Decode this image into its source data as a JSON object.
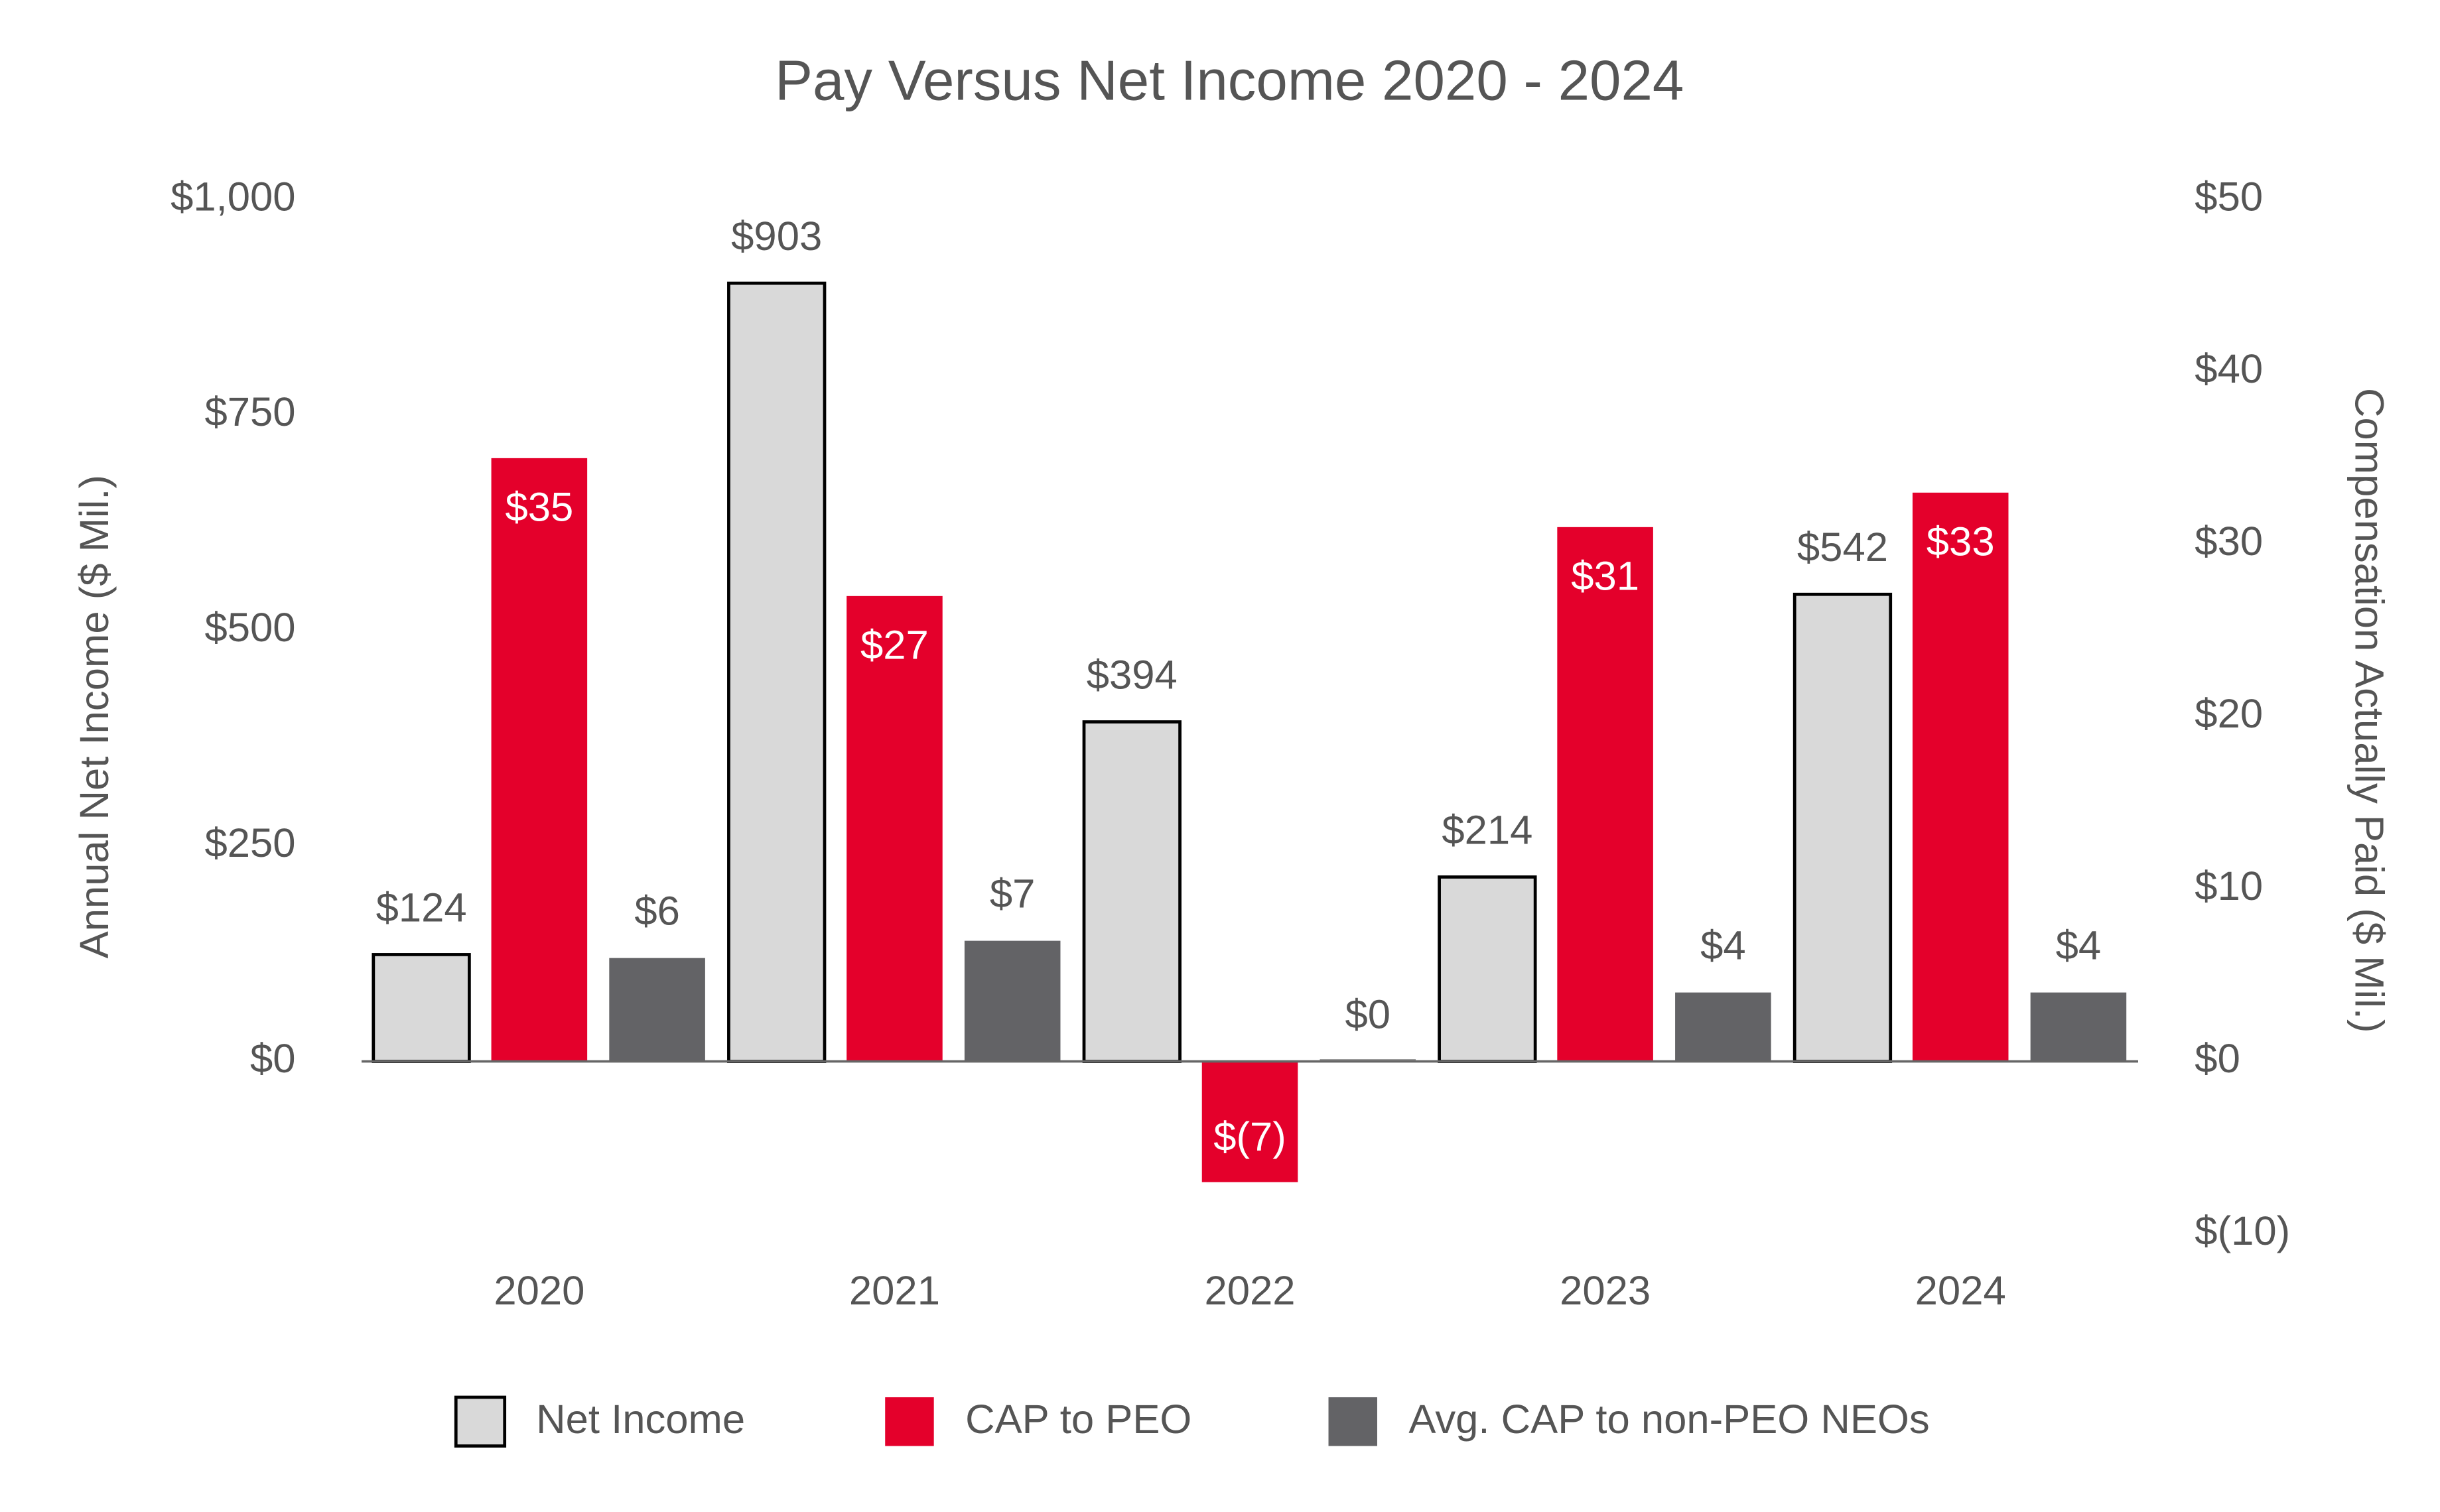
{
  "chart_data": {
    "type": "bar",
    "title": "Pay Versus Net Income 2020 - 2024",
    "ylabel": "Annual Net Income ($ Mil.)",
    "y2label": "Compensation Actually Paid ($ Mil.)",
    "categories": [
      "2020",
      "2021",
      "2022",
      "2023",
      "2024"
    ],
    "series": [
      {
        "name": "Net Income",
        "color": "#d9d9d9",
        "values": [
          124,
          903,
          394,
          214,
          542
        ],
        "value_labels": [
          "$124",
          "$903",
          "$394",
          "$214",
          "$542"
        ]
      },
      {
        "name": "CAP to PEO",
        "color": "#e4002b",
        "axis": "y2",
        "values": [
          35,
          27,
          -7,
          31,
          33
        ],
        "value_labels": [
          "$35",
          "$27",
          "$(7)",
          "$31",
          "$33"
        ]
      },
      {
        "name": "Avg. CAP to non-PEO NEOs",
        "color": "#636366",
        "axis": "y2",
        "values": [
          6,
          7,
          0,
          4,
          4
        ],
        "value_labels": [
          "$6",
          "$7",
          "$0",
          "$4",
          "$4"
        ]
      }
    ],
    "ylim": [
      -200,
      1000
    ],
    "yticks": [
      {
        "value": 0,
        "label": "$0"
      },
      {
        "value": 250,
        "label": "$250"
      },
      {
        "value": 500,
        "label": "$500"
      },
      {
        "value": 750,
        "label": "$750"
      },
      {
        "value": 1000,
        "label": "$1,000"
      }
    ],
    "y2lim": [
      -10,
      50
    ],
    "y2ticks": [
      {
        "value": -10,
        "label": "$(10)"
      },
      {
        "value": 0,
        "label": "$0"
      },
      {
        "value": 10,
        "label": "$10"
      },
      {
        "value": 20,
        "label": "$20"
      },
      {
        "value": 30,
        "label": "$30"
      },
      {
        "value": 40,
        "label": "$40"
      },
      {
        "value": 50,
        "label": "$50"
      }
    ],
    "legend": "bottom"
  }
}
